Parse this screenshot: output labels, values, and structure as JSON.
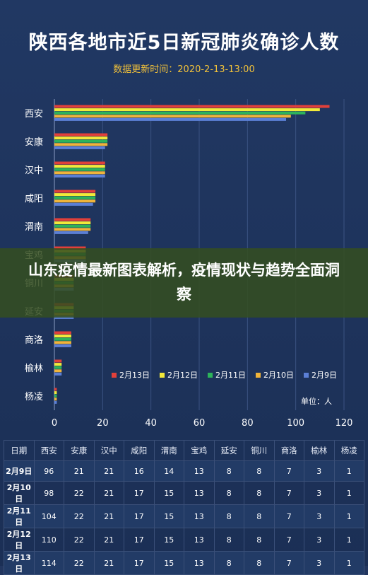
{
  "title": "陕西各地市近5日新冠肺炎确诊人数",
  "subtitle": "数据更新时间：2020-2-13-13:00",
  "overlay_headline": "山东疫情最新图表解析，疫情现状与趋势全面洞察",
  "unit_label": "单位：人",
  "colors": {
    "background": "#213863",
    "feb13": "#e2403a",
    "feb12": "#f2e93a",
    "feb11": "#2db35a",
    "feb10": "#f0b43a",
    "feb9": "#5b7fd6"
  },
  "chart_data": {
    "type": "bar",
    "orientation": "horizontal",
    "categories": [
      "西安",
      "安康",
      "汉中",
      "咸阳",
      "渭南",
      "宝鸡",
      "铜川",
      "延安",
      "商洛",
      "榆林",
      "杨凌"
    ],
    "series": [
      {
        "name": "2月13日",
        "color": "#e2403a",
        "values": [
          114,
          22,
          21,
          17,
          15,
          13,
          8,
          8,
          7,
          3,
          1
        ]
      },
      {
        "name": "2月12日",
        "color": "#f2e93a",
        "values": [
          110,
          22,
          21,
          17,
          15,
          13,
          8,
          8,
          7,
          3,
          1
        ]
      },
      {
        "name": "2月11日",
        "color": "#2db35a",
        "values": [
          104,
          22,
          21,
          17,
          15,
          13,
          8,
          8,
          7,
          3,
          1
        ]
      },
      {
        "name": "2月10日",
        "color": "#f0b43a",
        "values": [
          98,
          22,
          21,
          17,
          15,
          13,
          8,
          8,
          7,
          3,
          1
        ]
      },
      {
        "name": "2月9日",
        "color": "#5b7fd6",
        "values": [
          96,
          21,
          21,
          16,
          14,
          13,
          8,
          8,
          7,
          3,
          1
        ]
      }
    ],
    "xlim": [
      0,
      120
    ],
    "xticks": [
      "0",
      "20",
      "40",
      "60",
      "80",
      "100",
      "120"
    ],
    "legend_position": "bottom-right",
    "grid": true
  },
  "table": {
    "header": [
      "日期",
      "西安",
      "安康",
      "汉中",
      "咸阳",
      "渭南",
      "宝鸡",
      "延安",
      "铜川",
      "商洛",
      "榆林",
      "杨凌"
    ],
    "rows": [
      [
        "2月9日",
        "96",
        "21",
        "21",
        "16",
        "14",
        "13",
        "8",
        "8",
        "7",
        "3",
        "1"
      ],
      [
        "2月10日",
        "98",
        "22",
        "21",
        "17",
        "15",
        "13",
        "8",
        "8",
        "7",
        "3",
        "1"
      ],
      [
        "2月11日",
        "104",
        "22",
        "21",
        "17",
        "15",
        "13",
        "8",
        "8",
        "7",
        "3",
        "1"
      ],
      [
        "2月12日",
        "110",
        "22",
        "21",
        "17",
        "15",
        "13",
        "8",
        "8",
        "7",
        "3",
        "1"
      ],
      [
        "2月13日",
        "114",
        "22",
        "21",
        "17",
        "15",
        "13",
        "8",
        "8",
        "7",
        "3",
        "1"
      ]
    ]
  }
}
